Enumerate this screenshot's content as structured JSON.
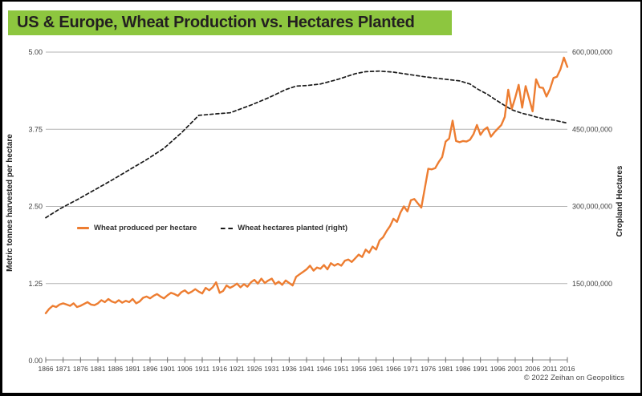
{
  "title": "US & Europe, Wheat Production vs. Hectares Planted",
  "footer": {
    "copyright": "© 2022 Zeihan on Geopolitics"
  },
  "colors": {
    "title_bg": "#8DC63F",
    "title_text": "#231F20",
    "yield_line": "#ED7D31",
    "hectares_line": "#1A1A1A",
    "gridline": "#B3B3B3",
    "axis_text": "#404040"
  },
  "legend": {
    "items": [
      {
        "label": "Wheat produced per hectare",
        "series": "yield"
      },
      {
        "label": "Wheat hectares planted (right)",
        "series": "hectares"
      }
    ]
  },
  "chart_data": {
    "type": "line",
    "title": "US & Europe, Wheat Production vs. Hectares Planted",
    "grid": "horizontal-only",
    "legend_position": "inside-left-middle",
    "left_axis": {
      "label": "Metric tonnes harvested per hectare",
      "range": [
        0,
        5
      ],
      "ticks": [
        {
          "value": 0,
          "label": "0.00"
        },
        {
          "value": 1.25,
          "label": "1.25"
        },
        {
          "value": 2.5,
          "label": "2.50"
        },
        {
          "value": 3.75,
          "label": "3.75"
        },
        {
          "value": 5,
          "label": "5.00"
        }
      ]
    },
    "right_axis": {
      "label": "Cropland Hectares",
      "range": [
        0,
        600000000
      ],
      "ticks": [
        {
          "value": 150000000,
          "label": "150,000,000"
        },
        {
          "value": 300000000,
          "label": "300,000,000"
        },
        {
          "value": 450000000,
          "label": "450,000,000"
        },
        {
          "value": 600000000,
          "label": "600,000,000"
        }
      ]
    },
    "x_axis": {
      "range": [
        1866,
        2016
      ],
      "tick_years": [
        1866,
        1871,
        1876,
        1881,
        1886,
        1891,
        1896,
        1901,
        1906,
        1911,
        1916,
        1921,
        1926,
        1931,
        1936,
        1941,
        1946,
        1951,
        1956,
        1961,
        1966,
        1971,
        1976,
        1981,
        1986,
        1991,
        1996,
        2001,
        2006,
        2011,
        2016
      ]
    },
    "series": [
      {
        "id": "hectares",
        "name": "Wheat hectares planted (right)",
        "axis": "right",
        "style": "dashed",
        "color": "#1A1A1A",
        "x": [
          1866,
          1870,
          1875,
          1880,
          1885,
          1890,
          1895,
          1900,
          1905,
          1910,
          1915,
          1919,
          1925,
          1930,
          1935,
          1938,
          1941,
          1945,
          1950,
          1955,
          1958,
          1962,
          1966,
          1970,
          1975,
          1980,
          1985,
          1988,
          1990,
          1993,
          1995,
          1998,
          2000,
          2003,
          2005,
          2007,
          2010,
          2012,
          2014,
          2016
        ],
        "values": [
          278000000,
          295000000,
          313000000,
          332000000,
          351000000,
          371000000,
          391000000,
          413000000,
          443000000,
          477000000,
          480000000,
          482000000,
          497000000,
          511000000,
          527000000,
          534000000,
          535000000,
          538000000,
          547000000,
          558000000,
          562000000,
          563000000,
          561000000,
          557000000,
          552000000,
          548000000,
          544000000,
          538000000,
          529000000,
          518000000,
          509000000,
          496000000,
          488000000,
          481000000,
          478000000,
          474000000,
          469000000,
          468000000,
          465000000,
          462000000
        ]
      },
      {
        "id": "yield",
        "name": "Wheat produced per hectare",
        "axis": "left",
        "style": "solid",
        "color": "#ED7D31",
        "x_start": 1866,
        "x_step": 1,
        "values": [
          0.77,
          0.84,
          0.89,
          0.87,
          0.91,
          0.93,
          0.91,
          0.89,
          0.93,
          0.87,
          0.89,
          0.92,
          0.95,
          0.91,
          0.9,
          0.93,
          0.98,
          0.95,
          1.0,
          0.96,
          0.94,
          0.98,
          0.94,
          0.97,
          0.95,
          1.0,
          0.93,
          0.96,
          1.02,
          1.04,
          1.01,
          1.05,
          1.08,
          1.04,
          1.01,
          1.06,
          1.1,
          1.08,
          1.05,
          1.11,
          1.14,
          1.09,
          1.12,
          1.16,
          1.12,
          1.09,
          1.18,
          1.14,
          1.19,
          1.27,
          1.1,
          1.13,
          1.22,
          1.18,
          1.21,
          1.25,
          1.19,
          1.24,
          1.2,
          1.27,
          1.31,
          1.25,
          1.33,
          1.26,
          1.3,
          1.33,
          1.24,
          1.28,
          1.23,
          1.3,
          1.26,
          1.22,
          1.36,
          1.4,
          1.44,
          1.48,
          1.54,
          1.46,
          1.51,
          1.49,
          1.55,
          1.48,
          1.58,
          1.54,
          1.57,
          1.54,
          1.62,
          1.64,
          1.6,
          1.66,
          1.72,
          1.68,
          1.8,
          1.75,
          1.85,
          1.8,
          1.95,
          2.0,
          2.1,
          2.18,
          2.3,
          2.25,
          2.4,
          2.5,
          2.42,
          2.6,
          2.62,
          2.55,
          2.48,
          2.79,
          3.11,
          3.1,
          3.12,
          3.22,
          3.3,
          3.55,
          3.6,
          3.89,
          3.56,
          3.54,
          3.56,
          3.55,
          3.58,
          3.67,
          3.82,
          3.66,
          3.74,
          3.78,
          3.63,
          3.7,
          3.76,
          3.82,
          3.95,
          4.39,
          4.08,
          4.26,
          4.47,
          4.1,
          4.45,
          4.25,
          4.04,
          4.56,
          4.43,
          4.42,
          4.28,
          4.4,
          4.58,
          4.6,
          4.72,
          4.91,
          4.76
        ]
      }
    ]
  }
}
